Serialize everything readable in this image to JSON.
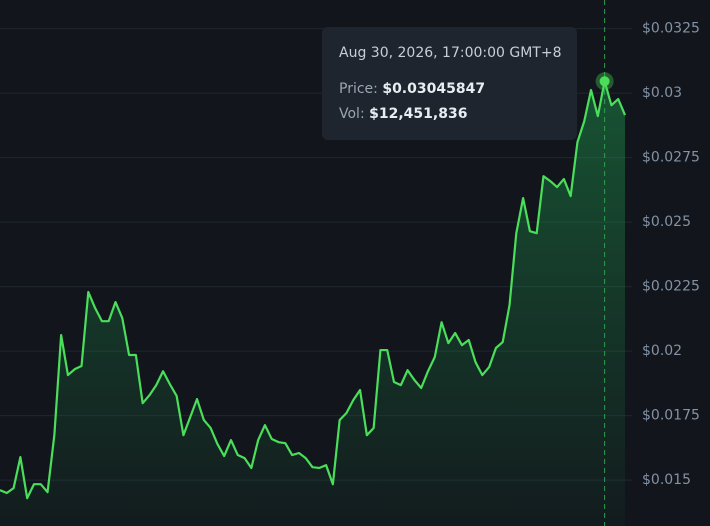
{
  "chart_data": {
    "type": "line",
    "series": [
      {
        "color": "#4ade5a",
        "values": [
          0.01461,
          0.0145,
          0.01469,
          0.01589,
          0.0143,
          0.01484,
          0.01484,
          0.01453,
          0.01674,
          0.02062,
          0.01907,
          0.0193,
          0.01942,
          0.02229,
          0.02167,
          0.02116,
          0.02116,
          0.0219,
          0.02128,
          0.01985,
          0.01985,
          0.01798,
          0.01829,
          0.01868,
          0.01922,
          0.01872,
          0.01826,
          0.01674,
          0.01744,
          0.01814,
          0.01733,
          0.01702,
          0.0164,
          0.01593,
          0.01655,
          0.01597,
          0.01585,
          0.01547,
          0.01655,
          0.01713,
          0.01659,
          0.01647,
          0.01643,
          0.01597,
          0.01605,
          0.01585,
          0.0155,
          0.01547,
          0.01558,
          0.01484,
          0.01733,
          0.0176,
          0.0181,
          0.01849,
          0.01674,
          0.01702,
          0.02004,
          0.02004,
          0.0188,
          0.01868,
          0.01926,
          0.01888,
          0.01857,
          0.01922,
          0.01977,
          0.02112,
          0.02031,
          0.0207,
          0.02023,
          0.02043,
          0.01957,
          0.01907,
          0.01938,
          0.02012,
          0.02035,
          0.02178,
          0.02457,
          0.02593,
          0.02465,
          0.02457,
          0.02678,
          0.02659,
          0.02636,
          0.02667,
          0.02601,
          0.0281,
          0.02891,
          0.03012,
          0.02911,
          0.03045847,
          0.02953,
          0.02977,
          0.02915
        ]
      }
    ],
    "ylim": [
      0.01322,
      0.03361
    ],
    "yticks": [
      {
        "value": 0.015,
        "label": "$0.015"
      },
      {
        "value": 0.0175,
        "label": "$0.0175"
      },
      {
        "value": 0.02,
        "label": "$0.02"
      },
      {
        "value": 0.0225,
        "label": "$0.0225"
      },
      {
        "value": 0.025,
        "label": "$0.025"
      },
      {
        "value": 0.0275,
        "label": "$0.0275"
      },
      {
        "value": 0.03,
        "label": "$0.03"
      },
      {
        "value": 0.0325,
        "label": "$0.0325"
      }
    ],
    "grid": true,
    "tooltip": {
      "date": "Aug 30, 2026, 17:00:00 GMT+8",
      "price_label": "Price:",
      "price": {
        "value": 0.03045847,
        "label": "$0.03045847"
      },
      "volume_label": "Vol:",
      "volume": {
        "value": 12451836,
        "label": "$12,451,836"
      }
    }
  }
}
